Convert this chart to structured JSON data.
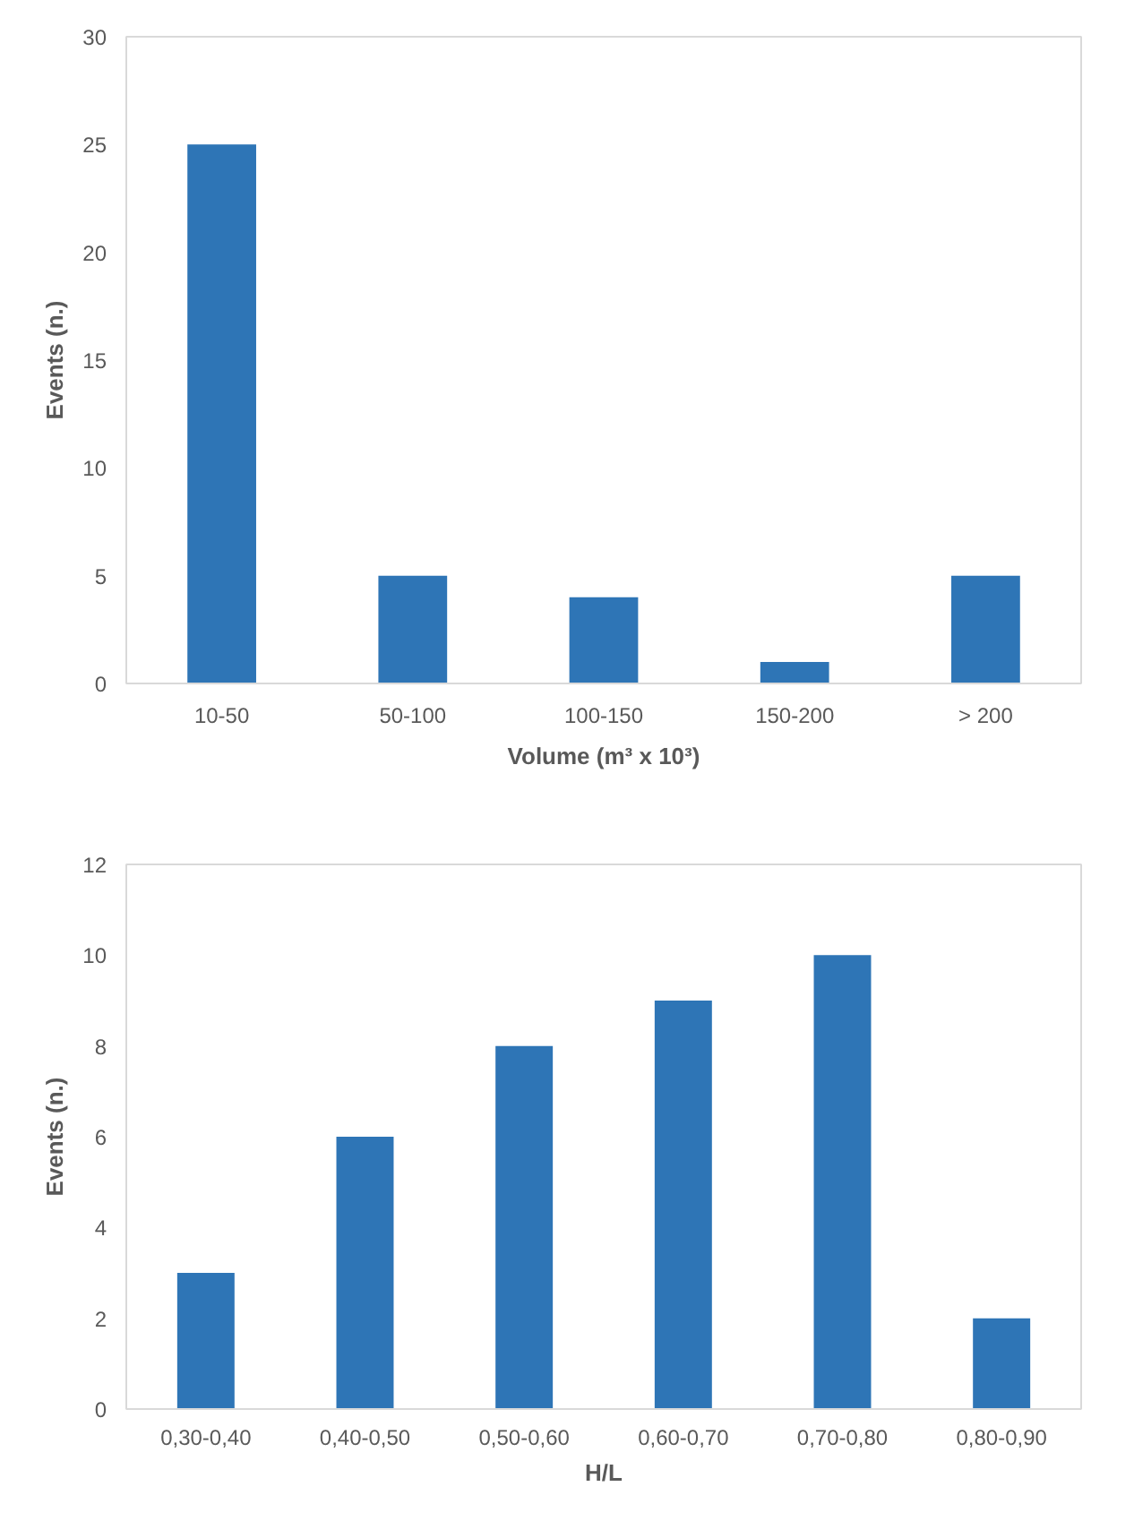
{
  "chart_data": [
    {
      "type": "bar",
      "xlabel": "Volume (m³ x 10³)",
      "ylabel": "Events (n.)",
      "categories": [
        "10-50",
        "50-100",
        "100-150",
        "150-200",
        "> 200"
      ],
      "values": [
        25,
        5,
        4,
        1,
        5
      ],
      "color": "#2e75b6",
      "ylim": [
        0,
        30
      ],
      "yticks": [
        0,
        5,
        10,
        15,
        20,
        25,
        30
      ]
    },
    {
      "type": "bar",
      "xlabel": "H/L",
      "ylabel": "Events (n.)",
      "categories": [
        "0,30-0,40",
        "0,40-0,50",
        "0,50-0,60",
        "0,60-0,70",
        "0,70-0,80",
        "0,80-0,90"
      ],
      "values": [
        3,
        6,
        8,
        9,
        10,
        2
      ],
      "color": "#2e75b6",
      "ylim": [
        0,
        12
      ],
      "yticks": [
        0,
        2,
        4,
        6,
        8,
        10,
        12
      ]
    }
  ]
}
